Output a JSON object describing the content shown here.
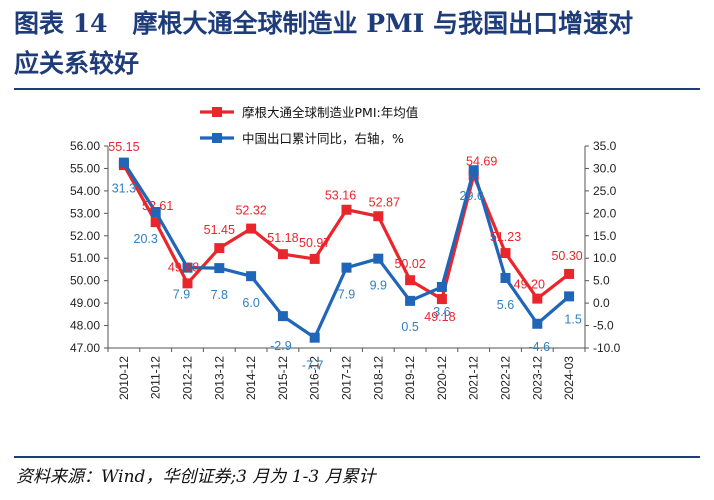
{
  "figure": {
    "title_line1": "图表 14　摩根大通全球制造业 PMI 与我国出口增速对",
    "title_line2": "应关系较好",
    "source": "资料来源：Wind，华创证券;3 月为 1-3 月累计"
  },
  "chart_data": {
    "type": "line",
    "categories": [
      "2010-12",
      "2011-12",
      "2012-12",
      "2013-12",
      "2014-12",
      "2015-12",
      "2016-12",
      "2017-12",
      "2018-12",
      "2019-12",
      "2020-12",
      "2021-12",
      "2022-12",
      "2023-12",
      "2024-03"
    ],
    "series": [
      {
        "name": "摩根大通全球制造业PMI:年均值",
        "axis": "left",
        "color": "#e8262b",
        "values": [
          55.15,
          52.61,
          49.88,
          51.45,
          52.32,
          51.18,
          50.97,
          53.16,
          52.87,
          50.02,
          49.18,
          54.69,
          51.23,
          49.2,
          50.3
        ],
        "labels": [
          "55.15",
          "52.61",
          "49.88",
          "51.45",
          "52.32",
          "51.18",
          "50.97",
          "53.16",
          "52.87",
          "50.02",
          "49.18",
          "54.69",
          "51.23",
          "49.20",
          "50.30"
        ]
      },
      {
        "name": "中国出口累计同比，右轴，%",
        "axis": "right",
        "color": "#1f66b8",
        "values": [
          31.3,
          20.3,
          7.9,
          7.8,
          6.0,
          -2.9,
          -7.7,
          7.9,
          9.9,
          0.5,
          3.6,
          29.6,
          5.6,
          -4.6,
          1.5
        ],
        "labels": [
          "31.3",
          "20.3",
          "7.9",
          "7.8",
          "6.0",
          "-2.9",
          "-7.7",
          "7.9",
          "9.9",
          "0.5",
          "3.6",
          "29.6",
          "5.6",
          "-4.6",
          "1.5"
        ]
      }
    ],
    "left_axis": {
      "min": 47,
      "max": 56,
      "step": 1,
      "decimals": 2
    },
    "right_axis": {
      "min": -10,
      "max": 35,
      "step": 5,
      "decimals": 1
    },
    "grid": false,
    "legend_position": "top"
  }
}
